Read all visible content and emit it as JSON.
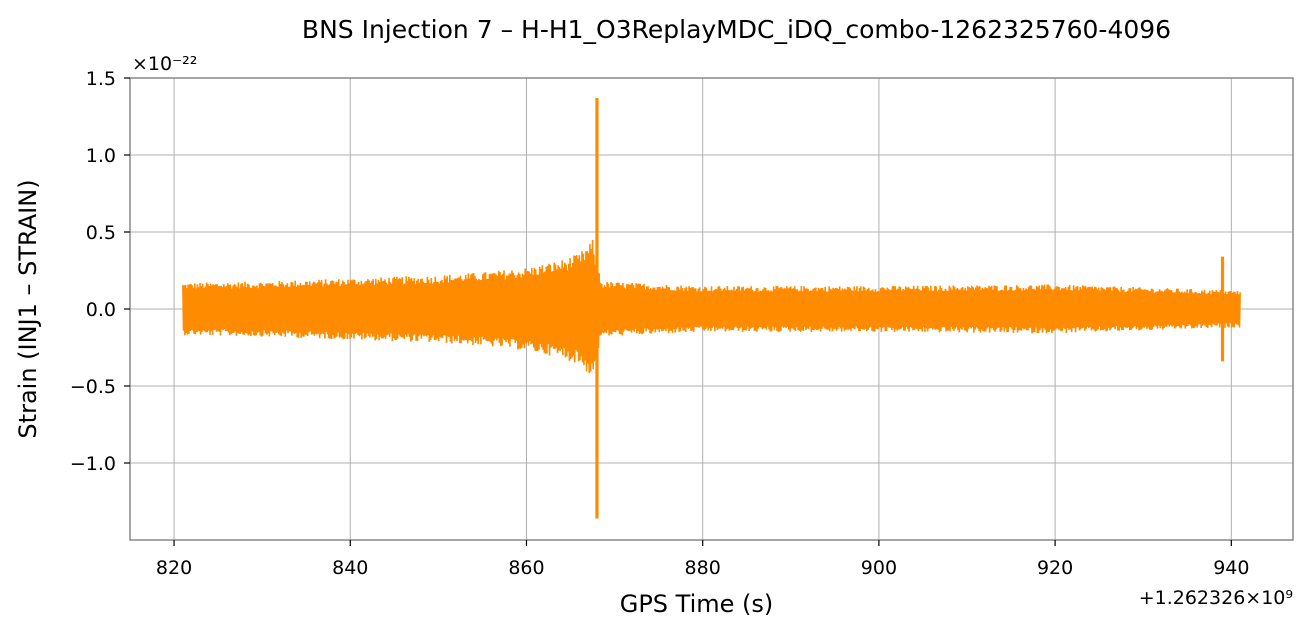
{
  "chart_data": {
    "type": "line",
    "title": "BNS Injection 7 – H-H1_O3ReplayMDC_iDQ_combo-1262325760-4096",
    "xlabel": "GPS Time (s)",
    "ylabel": "Strain (INJ1 – STRAIN)",
    "x_offset_label": "+1.262326×10⁹",
    "y_scale_label": "×10⁻²²",
    "xlim": [
      815,
      947
    ],
    "ylim": [
      -1.5,
      1.5
    ],
    "x_ticks": [
      820,
      840,
      860,
      880,
      900,
      920,
      940
    ],
    "y_ticks": [
      -1.0,
      -0.5,
      0.0,
      0.5,
      1.0,
      1.5
    ],
    "x_tick_labels": [
      "820",
      "840",
      "860",
      "880",
      "900",
      "920",
      "940"
    ],
    "y_tick_labels": [
      "−1.0",
      "−0.5",
      "0.0",
      "0.5",
      "1.0",
      "1.5"
    ],
    "grid": true,
    "series": [
      {
        "color": "#ff8c00",
        "x_range": [
          821,
          941
        ],
        "envelope": [
          {
            "x": 821,
            "amp": 0.17
          },
          {
            "x": 830,
            "amp": 0.18
          },
          {
            "x": 840,
            "amp": 0.2
          },
          {
            "x": 850,
            "amp": 0.22
          },
          {
            "x": 855,
            "amp": 0.24
          },
          {
            "x": 860,
            "amp": 0.27
          },
          {
            "x": 864,
            "amp": 0.32
          },
          {
            "x": 866,
            "amp": 0.36
          },
          {
            "x": 867.5,
            "amp": 0.45
          },
          {
            "x": 868.5,
            "amp": 0.18
          },
          {
            "x": 880,
            "amp": 0.15
          },
          {
            "x": 900,
            "amp": 0.15
          },
          {
            "x": 920,
            "amp": 0.16
          },
          {
            "x": 941,
            "amp": 0.12
          }
        ],
        "spikes": [
          {
            "x": 868,
            "min": -1.36,
            "max": 1.37
          },
          {
            "x": 939,
            "min": -0.34,
            "max": 0.34
          }
        ]
      }
    ]
  }
}
